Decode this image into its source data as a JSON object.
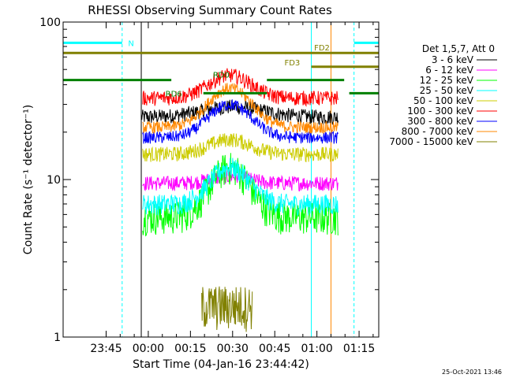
{
  "chart_data": {
    "type": "line",
    "title": "RHESSI Observing Summary Count Rates",
    "xlabel": "Start Time (04-Jan-16 23:44:42)",
    "ylabel": "Count Rate (s⁻¹ detector⁻¹)",
    "yscale": "log",
    "ylim": [
      1,
      100
    ],
    "xlim_minutes": [
      -15.3,
      97.0
    ],
    "x_ticks": [
      {
        "min": 0,
        "label": "23:45"
      },
      {
        "min": 15,
        "label": "00:00"
      },
      {
        "min": 30,
        "label": "00:15"
      },
      {
        "min": 45,
        "label": "00:30"
      },
      {
        "min": 60,
        "label": "00:45"
      },
      {
        "min": 75,
        "label": "01:00"
      },
      {
        "min": 90,
        "label": "01:15"
      }
    ],
    "y_ticks": [
      {
        "value": 1,
        "label": "1"
      },
      {
        "value": 10,
        "label": "10"
      },
      {
        "value": 100,
        "label": "100"
      }
    ],
    "legend_title": "Det 1,5,7, Att 0",
    "legend_position": "right",
    "series": [
      {
        "name": "3 - 6 keV",
        "color": "#000000",
        "start": 12.5,
        "end": 82.6,
        "base": 25.0,
        "peak": 29,
        "peak_at": 45,
        "width": 15,
        "noise": 0.05
      },
      {
        "name": "6 - 12 keV",
        "color": "#ff00ff",
        "start": 13.0,
        "end": 82.6,
        "base": 9.5,
        "peak": 10.5,
        "peak_at": 44,
        "width": 9,
        "noise": 0.05
      },
      {
        "name": "12 - 25 keV",
        "color": "#00ff00",
        "start": 13.0,
        "end": 82.6,
        "base": 5.8,
        "peak": 12,
        "peak_at": 44,
        "width": 9,
        "noise": 0.11
      },
      {
        "name": "25 - 50 keV",
        "color": "#00ffff",
        "start": 13.0,
        "end": 82.6,
        "base": 7.0,
        "peak": 12,
        "peak_at": 44,
        "width": 9,
        "noise": 0.07
      },
      {
        "name": "50 - 100 keV",
        "color": "#cccc00",
        "start": 13.0,
        "end": 82.6,
        "base": 14.5,
        "peak": 18,
        "peak_at": 44,
        "width": 10,
        "noise": 0.05
      },
      {
        "name": "100 - 300 keV",
        "color": "#ff0000",
        "start": 13.0,
        "end": 82.6,
        "base": 33.0,
        "peak": 46,
        "peak_at": 44,
        "width": 10,
        "noise": 0.05
      },
      {
        "name": "300 - 800 keV",
        "color": "#0000ff",
        "start": 13.0,
        "end": 82.6,
        "base": 18.5,
        "peak": 30,
        "peak_at": 44,
        "width": 10,
        "noise": 0.04
      },
      {
        "name": "800 - 7000 keV",
        "color": "#ff8800",
        "start": 13.0,
        "end": 82.6,
        "base": 21.5,
        "peak": 38,
        "peak_at": 44,
        "width": 10,
        "noise": 0.04
      },
      {
        "name": "7000 - 15000 keV",
        "color": "#808000",
        "start": 34.0,
        "end": 52.0,
        "base": 1.6,
        "peak": 1.6,
        "peak_at": 44,
        "width": 10,
        "noise": 0.15
      }
    ],
    "flag_bars": [
      {
        "label": "N",
        "color": "#00ffff",
        "segments": [
          [
            -15.3,
            5.7
          ],
          [
            88.2,
            97.0
          ]
        ],
        "y_frac": 0.066,
        "label_at": 7.0,
        "label_pos": "right"
      },
      {
        "label": "FD2",
        "color": "#808000",
        "segments": [
          [
            -15.3,
            97.0
          ]
        ],
        "y_frac": 0.098,
        "label_at": 74.0,
        "label_pos": "above"
      },
      {
        "label": "FD3",
        "color": "#808000",
        "segments": [
          [
            73.0,
            97.0
          ]
        ],
        "y_frac": 0.142,
        "label_at": 69.0,
        "label_pos": "above-left"
      },
      {
        "label": "RD0",
        "color": "#008000",
        "segments": [
          [
            -15.3,
            23.2
          ],
          [
            57.2,
            84.7
          ]
        ],
        "y_frac": 0.184,
        "label_at": 38.0,
        "label_pos": "above"
      },
      {
        "label": "RD6",
        "color": "#008000",
        "segments": [
          [
            34.6,
            57.2
          ],
          [
            86.5,
            97.0
          ]
        ],
        "y_frac": 0.226,
        "label_at": 27.0,
        "label_pos": "left"
      }
    ],
    "vertical_lines": [
      {
        "min": 5.7,
        "color": "#00ffff",
        "dashed": true
      },
      {
        "min": 73.0,
        "color": "#00ffff",
        "dashed": false
      },
      {
        "min": 88.2,
        "color": "#00ffff",
        "dashed": true
      },
      {
        "min": 12.5,
        "color": "#000000",
        "dashed": false
      },
      {
        "min": 80.0,
        "color": "#ff8800",
        "dashed": false
      }
    ],
    "footer_timestamp": "25-Oct-2021 13:46"
  }
}
